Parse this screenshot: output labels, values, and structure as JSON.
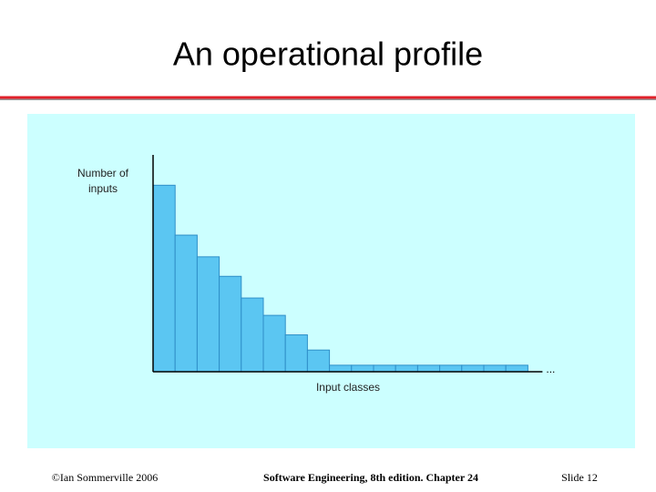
{
  "header": {
    "title": "An operational profile"
  },
  "chart_data": {
    "type": "bar",
    "y_label": [
      "Number of",
      "inputs"
    ],
    "x_label": "Input classes",
    "x_continuation": "...",
    "categories": [
      null,
      null,
      null,
      null,
      null,
      null,
      null,
      null,
      null,
      null,
      null,
      null,
      null,
      null,
      null,
      null,
      null
    ],
    "values": [
      86,
      63,
      53,
      44,
      34,
      26,
      17,
      10,
      3,
      3,
      3,
      3,
      3,
      3,
      3,
      3,
      3
    ],
    "color": "#5bc6f2",
    "ylim": [
      0,
      100
    ]
  },
  "footer": {
    "left": "©Ian Sommerville 2006",
    "center": "Software Engineering, 8th edition. Chapter 24",
    "right": "Slide  12"
  }
}
